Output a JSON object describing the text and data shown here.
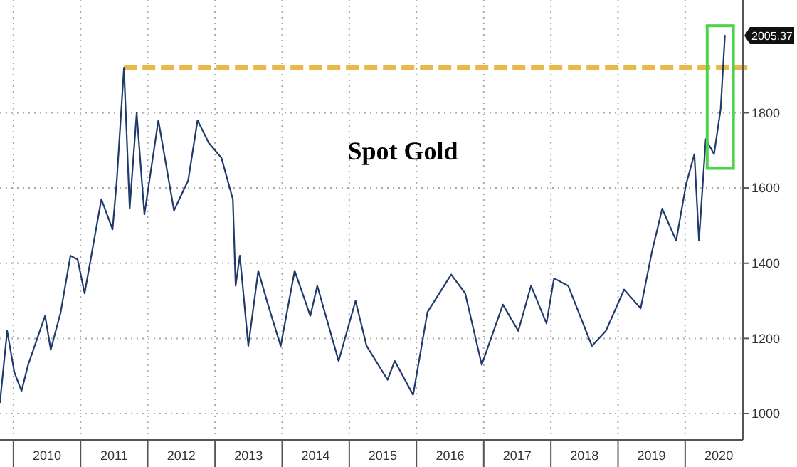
{
  "chart_data": {
    "type": "line",
    "title": "Spot Gold",
    "x": [
      "2009-10-20",
      "2009-11-28",
      "2010-01-06",
      "2010-02-14",
      "2010-03-22",
      "2010-06-22",
      "2010-07-23",
      "2010-09-15",
      "2010-11-07",
      "2010-12-16",
      "2011-01-23",
      "2011-04-24",
      "2011-06-24",
      "2011-07-17",
      "2011-08-25",
      "2011-09-25",
      "2011-11-02",
      "2011-12-14",
      "2012-02-28",
      "2012-05-23",
      "2012-08-08",
      "2012-09-28",
      "2012-11-28",
      "2013-02-05",
      "2013-04-08",
      "2013-04-23",
      "2013-05-16",
      "2013-07-01",
      "2013-08-24",
      "2013-10-16",
      "2013-12-24",
      "2014-03-10",
      "2014-06-03",
      "2014-07-11",
      "2014-11-04",
      "2015-02-04",
      "2015-04-05",
      "2015-07-28",
      "2015-09-05",
      "2015-12-14",
      "2016-03-01",
      "2016-07-08",
      "2016-09-22",
      "2016-12-21",
      "2017-04-15",
      "2017-07-08",
      "2017-09-15",
      "2017-12-08",
      "2018-01-18",
      "2018-04-05",
      "2018-08-12",
      "2018-10-27",
      "2019-02-03",
      "2019-05-04",
      "2019-07-04",
      "2019-08-29",
      "2019-11-13",
      "2020-01-06",
      "2020-02-20",
      "2020-03-16",
      "2020-04-22",
      "2020-06-06",
      "2020-07-12",
      "2020-08-04"
    ],
    "series": [
      {
        "color": "#1f3a6b",
        "values": [
          1030,
          1220,
          1110,
          1060,
          1130,
          1260,
          1170,
          1270,
          1420,
          1410,
          1320,
          1570,
          1490,
          1620,
          1920,
          1545,
          1800,
          1530,
          1780,
          1540,
          1620,
          1780,
          1720,
          1680,
          1570,
          1340,
          1420,
          1180,
          1380,
          1290,
          1180,
          1380,
          1260,
          1340,
          1140,
          1300,
          1180,
          1090,
          1140,
          1050,
          1270,
          1370,
          1320,
          1130,
          1290,
          1220,
          1340,
          1240,
          1360,
          1340,
          1180,
          1220,
          1330,
          1280,
          1430,
          1545,
          1460,
          1610,
          1690,
          1460,
          1730,
          1690,
          1810,
          2005
        ]
      }
    ],
    "xlim": [
      "2009-10-20",
      "2020-11-10"
    ],
    "xticks": [
      {
        "value": "2010-01-01",
        "label": null
      },
      {
        "value": "2010-07-02",
        "label": "2010"
      },
      {
        "value": "2011-01-01",
        "label": null
      },
      {
        "value": "2011-07-02",
        "label": "2011"
      },
      {
        "value": "2012-01-01",
        "label": null
      },
      {
        "value": "2012-07-02",
        "label": "2012"
      },
      {
        "value": "2013-01-01",
        "label": null
      },
      {
        "value": "2013-07-02",
        "label": "2013"
      },
      {
        "value": "2014-01-01",
        "label": null
      },
      {
        "value": "2014-07-02",
        "label": "2014"
      },
      {
        "value": "2015-01-01",
        "label": null
      },
      {
        "value": "2015-07-02",
        "label": "2015"
      },
      {
        "value": "2016-01-01",
        "label": null
      },
      {
        "value": "2016-07-02",
        "label": "2016"
      },
      {
        "value": "2017-01-01",
        "label": null
      },
      {
        "value": "2017-07-02",
        "label": "2017"
      },
      {
        "value": "2018-01-01",
        "label": null
      },
      {
        "value": "2018-07-02",
        "label": "2018"
      },
      {
        "value": "2019-01-01",
        "label": null
      },
      {
        "value": "2019-07-02",
        "label": "2019"
      },
      {
        "value": "2020-01-01",
        "label": null
      },
      {
        "value": "2020-07-02",
        "label": "2020"
      }
    ],
    "ylim": [
      930,
      2100
    ],
    "yticks": [
      1000,
      1200,
      1400,
      1600,
      1800
    ],
    "grid": true,
    "marker": "none",
    "line_style": "solid",
    "ref_lines": [
      {
        "axis": "y",
        "value": 1920,
        "color": "#e8b84a",
        "line_style": "dashed"
      }
    ],
    "annotations": [
      {
        "text": "2005.37",
        "y": 2005.37
      }
    ]
  }
}
